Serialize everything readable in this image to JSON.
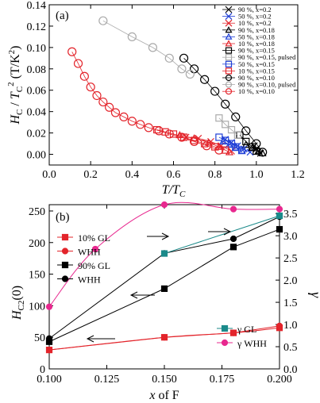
{
  "chart_data": [
    {
      "type": "scatter",
      "panel_label": "(a)",
      "xlabel": "T/T_C",
      "ylabel": "H_C / T_C^2 (T/K^2)",
      "xlim": [
        0.0,
        1.2
      ],
      "ylim": [
        -0.01,
        0.14
      ],
      "xticks": [
        "0.0",
        "0.2",
        "0.4",
        "0.6",
        "0.8",
        "1.0",
        "1.2"
      ],
      "yticks": [
        "0.00",
        "0.02",
        "0.04",
        "0.06",
        "0.08",
        "0.10",
        "0.12",
        "0.14"
      ],
      "legend_position": "top-right",
      "series": [
        {
          "name": "90 %, x=0.2",
          "color": "#000000",
          "marker": "x",
          "x": [
            0.99,
            1.0,
            1.01,
            1.02
          ],
          "y": [
            0.008,
            0.005,
            0.003,
            0.001
          ]
        },
        {
          "name": "50 %, x=0.2",
          "color": "#1f3fd6",
          "marker": "x",
          "x": [
            0.85,
            0.88,
            0.91,
            0.94,
            0.97
          ],
          "y": [
            0.014,
            0.011,
            0.008,
            0.005,
            0.002
          ]
        },
        {
          "name": "10 %, x=0.2",
          "color": "#e3242b",
          "marker": "x",
          "x": [
            0.66,
            0.72,
            0.78,
            0.83,
            0.88
          ],
          "y": [
            0.016,
            0.015,
            0.012,
            0.008,
            0.003
          ]
        },
        {
          "name": "90 %, x=0.18",
          "color": "#000000",
          "marker": "tri",
          "x": [
            0.95,
            0.98,
            1.01,
            1.03
          ],
          "y": [
            0.009,
            0.006,
            0.003,
            0.001
          ]
        },
        {
          "name": "50 %, x=0.18",
          "color": "#1f3fd6",
          "marker": "tri",
          "x": [
            0.84,
            0.87,
            0.9,
            0.93
          ],
          "y": [
            0.012,
            0.009,
            0.006,
            0.003
          ]
        },
        {
          "name": "10 %, x=0.18",
          "color": "#e3242b",
          "marker": "tri",
          "x": [
            0.63,
            0.7,
            0.77,
            0.82,
            0.87
          ],
          "y": [
            0.018,
            0.015,
            0.011,
            0.007,
            0.002
          ]
        },
        {
          "name": "90 %, x=0.15",
          "color": "#000000",
          "marker": "sq",
          "x": [
            0.92,
            0.95,
            0.98,
            1.0
          ],
          "y": [
            0.018,
            0.012,
            0.007,
            0.003
          ]
        },
        {
          "name": "90 %, x=0.15, pulsed",
          "color": "#aaaaaa",
          "marker": "sq",
          "x": [
            0.82,
            0.85,
            0.88,
            0.91
          ],
          "y": [
            0.034,
            0.028,
            0.023,
            0.018
          ]
        },
        {
          "name": "50 %, x=0.15",
          "color": "#1f3fd6",
          "marker": "sq",
          "x": [
            0.82,
            0.85,
            0.88,
            0.9,
            0.93
          ],
          "y": [
            0.016,
            0.013,
            0.01,
            0.007,
            0.004
          ]
        },
        {
          "name": "10 %, x=0.15",
          "color": "#e3242b",
          "marker": "sq",
          "x": [
            0.52,
            0.56,
            0.6,
            0.65,
            0.7,
            0.75,
            0.8,
            0.85
          ],
          "y": [
            0.023,
            0.021,
            0.019,
            0.016,
            0.013,
            0.01,
            0.007,
            0.004
          ]
        },
        {
          "name": "90 %, x=0.10",
          "color": "#000000",
          "marker": "circ",
          "x": [
            0.65,
            0.7,
            0.75,
            0.8,
            0.85,
            0.9,
            0.95,
            1.0,
            1.03
          ],
          "y": [
            0.09,
            0.08,
            0.07,
            0.059,
            0.047,
            0.035,
            0.022,
            0.01,
            0.002
          ]
        },
        {
          "name": "90 %, x=0.10, pulsed",
          "color": "#aaaaaa",
          "marker": "circ",
          "x": [
            0.26,
            0.4,
            0.5,
            0.58,
            0.64,
            0.68
          ],
          "y": [
            0.125,
            0.11,
            0.1,
            0.09,
            0.08,
            0.075
          ]
        },
        {
          "name": "10 %, x=0.10",
          "color": "#e3242b",
          "marker": "circ",
          "x": [
            0.11,
            0.14,
            0.17,
            0.2,
            0.23,
            0.26,
            0.29,
            0.32,
            0.36,
            0.4,
            0.44,
            0.48,
            0.53,
            0.58,
            0.64,
            0.7,
            0.76,
            0.82
          ],
          "y": [
            0.096,
            0.085,
            0.073,
            0.063,
            0.055,
            0.049,
            0.044,
            0.039,
            0.035,
            0.031,
            0.028,
            0.025,
            0.022,
            0.019,
            0.016,
            0.012,
            0.008,
            0.004
          ]
        }
      ]
    },
    {
      "type": "line",
      "panel_label": "(b)",
      "xlabel": "x of F",
      "ylabel": "H_C2(0)",
      "y2label": "γ",
      "xlim": [
        0.1,
        0.2
      ],
      "ylim": [
        0,
        260
      ],
      "y2lim": [
        0,
        3.7
      ],
      "xticks": [
        "0.100",
        "0.125",
        "0.150",
        "0.175",
        "0.200"
      ],
      "yticks": [
        "0",
        "50",
        "100",
        "150",
        "200",
        "250"
      ],
      "y2ticks": [
        "0.0",
        "0.5",
        "1.0",
        "1.5",
        "2.0",
        "2.5",
        "3.0",
        "3.5"
      ],
      "series": [
        {
          "name": "10% GL",
          "axis": "left",
          "color": "#e3242b",
          "marker": "sq",
          "curve": "smooth",
          "x": [
            0.1,
            0.15,
            0.18,
            0.2
          ],
          "y": [
            30,
            50,
            57,
            65
          ]
        },
        {
          "name": "WHH",
          "axis": "left",
          "color": "#e3242b",
          "marker": "circ",
          "x": [
            0.1,
            0.15,
            0.18,
            0.2
          ],
          "y": [
            30,
            50,
            57,
            68
          ]
        },
        {
          "name": "90% GL",
          "axis": "left",
          "color": "#000000",
          "marker": "sq",
          "x": [
            0.1,
            0.15,
            0.18,
            0.2
          ],
          "y": [
            43,
            127,
            193,
            221
          ]
        },
        {
          "name": "WHH",
          "axis": "left",
          "color": "#000000",
          "marker": "circ",
          "x": [
            0.1,
            0.15,
            0.18,
            0.2
          ],
          "y": [
            48,
            183,
            206,
            241
          ]
        },
        {
          "name": "γ GL",
          "axis": "right",
          "color": "#1b8a8a",
          "marker": "sq",
          "curve": "smooth",
          "x": [
            0.15,
            0.2
          ],
          "y": [
            2.6,
            3.45
          ]
        },
        {
          "name": "γ WHH",
          "axis": "right",
          "color": "#e8288f",
          "marker": "circ",
          "curve": "smooth",
          "x": [
            0.1,
            0.12,
            0.15,
            0.18,
            0.2
          ],
          "y": [
            1.4,
            2.7,
            3.7,
            3.6,
            3.6
          ]
        }
      ],
      "annotations": [
        "arrow-left",
        "arrow-left",
        "arrow-right",
        "arrow-right"
      ]
    }
  ]
}
